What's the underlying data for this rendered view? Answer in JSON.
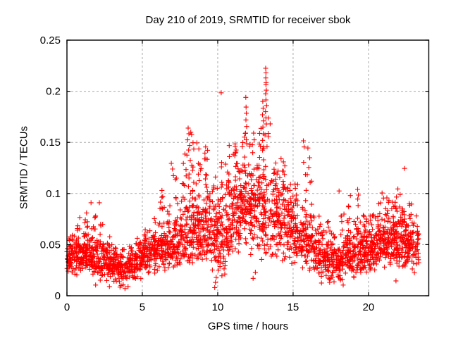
{
  "chart_data": {
    "type": "scatter",
    "title": "Day 210 of 2019, SRMTID for receiver sbok",
    "xlabel": "GPS time / hours",
    "ylabel": "SRMTID / TECUs",
    "xlim": [
      0,
      24
    ],
    "ylim": [
      0,
      0.25
    ],
    "xticks": [
      0,
      5,
      10,
      15,
      20
    ],
    "xtick_labels": [
      "0",
      "5",
      "10",
      "15",
      "20"
    ],
    "yticks": [
      0,
      0.05,
      0.1,
      0.15,
      0.2,
      0.25
    ],
    "ytick_labels": [
      "0",
      "0.05",
      "0.1",
      "0.15",
      "0.2",
      "0.25"
    ],
    "grid": true,
    "grid_style": "dashed",
    "grid_color": "#aaaaaa",
    "border_color": "#000000",
    "background": "#ffffff",
    "marker": "plus",
    "marker_color": "#ff0000",
    "marker_size_px": 7,
    "x_data_range": [
      0,
      23.35
    ],
    "n_points_approx": 2800,
    "envelope_format": "[x_start, x_end, n_points, y_center, y_sigma, y_min, y_max]",
    "density_envelope": [
      [
        0.0,
        0.5,
        55,
        0.038,
        0.008,
        0.022,
        0.062
      ],
      [
        0.5,
        1.0,
        55,
        0.04,
        0.01,
        0.02,
        0.072
      ],
      [
        1.0,
        1.5,
        55,
        0.042,
        0.011,
        0.02,
        0.082
      ],
      [
        1.5,
        2.0,
        55,
        0.038,
        0.01,
        0.018,
        0.08
      ],
      [
        2.0,
        2.5,
        50,
        0.035,
        0.009,
        0.015,
        0.072
      ],
      [
        2.5,
        3.0,
        50,
        0.032,
        0.008,
        0.013,
        0.058
      ],
      [
        3.0,
        3.5,
        50,
        0.028,
        0.008,
        0.01,
        0.052
      ],
      [
        3.5,
        4.0,
        45,
        0.025,
        0.007,
        0.008,
        0.046
      ],
      [
        4.0,
        4.5,
        45,
        0.028,
        0.008,
        0.01,
        0.05
      ],
      [
        4.5,
        5.0,
        50,
        0.034,
        0.008,
        0.015,
        0.058
      ],
      [
        5.0,
        5.5,
        50,
        0.04,
        0.008,
        0.02,
        0.066
      ],
      [
        5.5,
        6.0,
        50,
        0.042,
        0.01,
        0.022,
        0.076
      ],
      [
        6.0,
        6.5,
        50,
        0.045,
        0.012,
        0.022,
        0.1
      ],
      [
        6.5,
        7.0,
        50,
        0.046,
        0.012,
        0.022,
        0.108
      ],
      [
        7.0,
        7.5,
        55,
        0.05,
        0.014,
        0.025,
        0.125
      ],
      [
        7.5,
        8.0,
        55,
        0.055,
        0.018,
        0.028,
        0.14
      ],
      [
        8.0,
        8.5,
        60,
        0.062,
        0.024,
        0.03,
        0.16
      ],
      [
        8.5,
        9.0,
        60,
        0.068,
        0.024,
        0.032,
        0.15
      ],
      [
        9.0,
        9.5,
        60,
        0.066,
        0.022,
        0.028,
        0.145
      ],
      [
        9.5,
        10.0,
        55,
        0.058,
        0.02,
        0.015,
        0.13
      ],
      [
        10.0,
        10.5,
        55,
        0.058,
        0.024,
        0.015,
        0.135
      ],
      [
        10.5,
        11.0,
        60,
        0.078,
        0.024,
        0.038,
        0.148
      ],
      [
        11.0,
        11.5,
        60,
        0.082,
        0.024,
        0.04,
        0.15
      ],
      [
        11.5,
        12.0,
        60,
        0.088,
        0.028,
        0.042,
        0.16
      ],
      [
        12.0,
        12.5,
        60,
        0.088,
        0.026,
        0.04,
        0.158
      ],
      [
        12.5,
        13.0,
        55,
        0.084,
        0.028,
        0.035,
        0.165
      ],
      [
        13.0,
        13.5,
        55,
        0.088,
        0.032,
        0.038,
        0.185
      ],
      [
        13.5,
        14.0,
        55,
        0.078,
        0.024,
        0.032,
        0.14
      ],
      [
        14.0,
        14.5,
        55,
        0.074,
        0.021,
        0.032,
        0.134
      ],
      [
        14.5,
        15.0,
        50,
        0.068,
        0.019,
        0.03,
        0.12
      ],
      [
        15.0,
        15.5,
        50,
        0.06,
        0.017,
        0.028,
        0.11
      ],
      [
        15.5,
        16.0,
        50,
        0.054,
        0.018,
        0.025,
        0.13
      ],
      [
        16.0,
        16.5,
        50,
        0.05,
        0.014,
        0.022,
        0.115
      ],
      [
        16.5,
        17.0,
        50,
        0.042,
        0.011,
        0.016,
        0.08
      ],
      [
        17.0,
        17.5,
        50,
        0.038,
        0.01,
        0.012,
        0.074
      ],
      [
        17.5,
        18.0,
        50,
        0.035,
        0.01,
        0.01,
        0.07
      ],
      [
        18.0,
        18.5,
        50,
        0.036,
        0.01,
        0.012,
        0.08
      ],
      [
        18.5,
        19.0,
        55,
        0.04,
        0.012,
        0.016,
        0.088
      ],
      [
        19.0,
        19.5,
        55,
        0.044,
        0.014,
        0.018,
        0.096
      ],
      [
        19.5,
        20.0,
        55,
        0.042,
        0.012,
        0.02,
        0.085
      ],
      [
        20.0,
        20.5,
        55,
        0.046,
        0.012,
        0.022,
        0.088
      ],
      [
        20.5,
        21.0,
        55,
        0.05,
        0.013,
        0.025,
        0.094
      ],
      [
        21.0,
        21.5,
        55,
        0.052,
        0.014,
        0.026,
        0.096
      ],
      [
        21.5,
        22.0,
        60,
        0.055,
        0.015,
        0.028,
        0.098
      ],
      [
        22.0,
        22.5,
        60,
        0.054,
        0.015,
        0.028,
        0.096
      ],
      [
        22.5,
        23.0,
        55,
        0.05,
        0.014,
        0.024,
        0.092
      ],
      [
        23.0,
        23.35,
        25,
        0.045,
        0.012,
        0.02,
        0.08
      ]
    ],
    "notable_points": [
      [
        13.18,
        0.2225
      ],
      [
        13.2,
        0.218
      ],
      [
        13.19,
        0.213
      ],
      [
        13.21,
        0.2085
      ],
      [
        13.2,
        0.2065
      ],
      [
        13.22,
        0.201
      ],
      [
        13.18,
        0.1975
      ],
      [
        13.2,
        0.1915
      ],
      [
        13.24,
        0.186
      ],
      [
        13.17,
        0.18
      ],
      [
        13.2,
        0.174
      ],
      [
        13.22,
        0.168
      ],
      [
        12.99,
        0.19
      ],
      [
        13.01,
        0.1835
      ],
      [
        12.97,
        0.177
      ],
      [
        13.03,
        0.171
      ],
      [
        13.0,
        0.165
      ],
      [
        13.02,
        0.1585
      ],
      [
        12.98,
        0.152
      ],
      [
        11.86,
        0.194
      ],
      [
        11.88,
        0.1845
      ],
      [
        11.9,
        0.1785
      ],
      [
        11.87,
        0.172
      ],
      [
        11.92,
        0.1655
      ],
      [
        11.85,
        0.159
      ],
      [
        11.9,
        0.1525
      ],
      [
        10.23,
        0.1985
      ],
      [
        8.04,
        0.164
      ],
      [
        8.09,
        0.1585
      ],
      [
        8.0,
        0.1525
      ],
      [
        8.14,
        0.147
      ],
      [
        8.07,
        0.1425
      ],
      [
        7.96,
        0.1375
      ],
      [
        8.18,
        0.1325
      ],
      [
        8.28,
        0.1275
      ],
      [
        7.9,
        0.1235
      ],
      [
        8.1,
        0.119
      ],
      [
        8.62,
        0.1495
      ],
      [
        8.75,
        0.1435
      ],
      [
        9.2,
        0.1455
      ],
      [
        9.15,
        0.1395
      ],
      [
        9.3,
        0.1335
      ],
      [
        11.15,
        0.1485
      ],
      [
        11.22,
        0.1425
      ],
      [
        12.38,
        0.159
      ],
      [
        12.42,
        0.1525
      ],
      [
        14.2,
        0.134
      ],
      [
        14.45,
        0.127
      ],
      [
        14.3,
        0.122
      ],
      [
        15.68,
        0.1515
      ],
      [
        15.73,
        0.1455
      ],
      [
        15.7,
        0.1305
      ],
      [
        15.98,
        0.1445
      ],
      [
        16.04,
        0.1255
      ],
      [
        15.94,
        0.1185
      ],
      [
        16.1,
        0.135
      ],
      [
        22.39,
        0.1245
      ],
      [
        6.92,
        0.1295
      ],
      [
        7.0,
        0.124
      ],
      [
        7.06,
        0.1175
      ],
      [
        6.3,
        0.103
      ],
      [
        6.35,
        0.097
      ],
      [
        6.2,
        0.0915
      ],
      [
        6.45,
        0.0865
      ],
      [
        5.8,
        0.0755
      ],
      [
        1.6,
        0.091
      ],
      [
        2.15,
        0.091
      ],
      [
        1.3,
        0.081
      ],
      [
        1.9,
        0.078
      ],
      [
        0.85,
        0.0765
      ],
      [
        19.28,
        0.104
      ],
      [
        19.33,
        0.0985
      ],
      [
        18.05,
        0.1025
      ],
      [
        18.8,
        0.098
      ],
      [
        20.9,
        0.1005
      ],
      [
        21.0,
        0.0955
      ],
      [
        21.95,
        0.1045
      ],
      [
        22.1,
        0.099
      ],
      [
        1.9,
        0.0105
      ],
      [
        2.82,
        0.009
      ],
      [
        3.52,
        0.0085
      ],
      [
        3.72,
        0.0105
      ],
      [
        3.85,
        0.007
      ],
      [
        4.05,
        0.009
      ],
      [
        9.8,
        0.008
      ],
      [
        9.85,
        0.013
      ],
      [
        9.9,
        0.018
      ],
      [
        10.28,
        0.0195
      ],
      [
        10.05,
        0.025
      ],
      [
        10.15,
        0.0285
      ],
      [
        12.35,
        0.017
      ],
      [
        12.5,
        0.023
      ],
      [
        16.88,
        0.0125
      ],
      [
        18.32,
        0.0105
      ],
      [
        21.82,
        0.0145
      ]
    ]
  }
}
